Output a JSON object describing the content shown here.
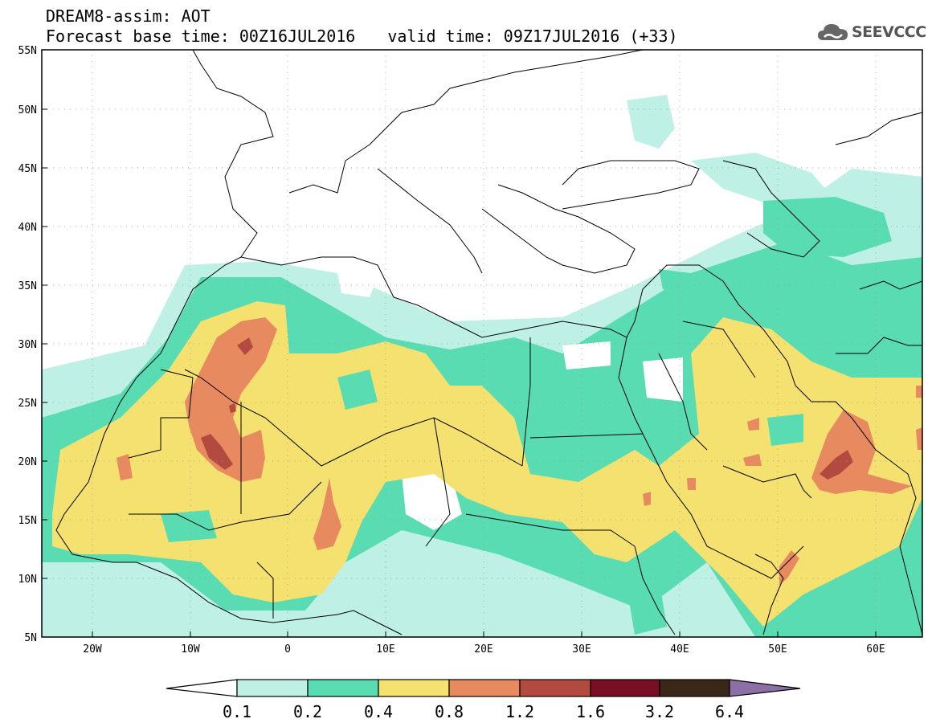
{
  "header": {
    "title": "DREAM8-assim: AOT",
    "base_time": "Forecast base time: 00Z16JUL2016",
    "valid_time": "valid time: 09Z17JUL2016 (+33)"
  },
  "logo": {
    "text": "SEEVCCC",
    "icon": "cloud-icon"
  },
  "map": {
    "lat_labels": [
      "55N",
      "50N",
      "45N",
      "40N",
      "35N",
      "30N",
      "25N",
      "20N",
      "15N",
      "10N",
      "5N"
    ],
    "lon_labels": [
      "20W",
      "10W",
      "0",
      "10E",
      "20E",
      "30E",
      "40E",
      "50E",
      "60E"
    ],
    "extent": {
      "lon_min": -25,
      "lon_max": 65,
      "lat_min": 5,
      "lat_max": 55
    },
    "gridlines": "dotted"
  },
  "colorbar": {
    "ticks": [
      "0.1",
      "0.2",
      "0.4",
      "0.8",
      "1.2",
      "1.6",
      "3.2",
      "6.4"
    ],
    "colors": [
      "#ffffff",
      "#bff0e6",
      "#5adcb2",
      "#f5e170",
      "#e88a5f",
      "#b34a3f",
      "#7a0e24",
      "#3b2717",
      "#8c6fa6"
    ]
  },
  "legend_colors": {
    "c1": "#bff0e6",
    "c2": "#5adcb2",
    "c3": "#f5e170",
    "c4": "#e88a5f",
    "c5": "#b34a3f",
    "c6": "#7a0e24"
  }
}
